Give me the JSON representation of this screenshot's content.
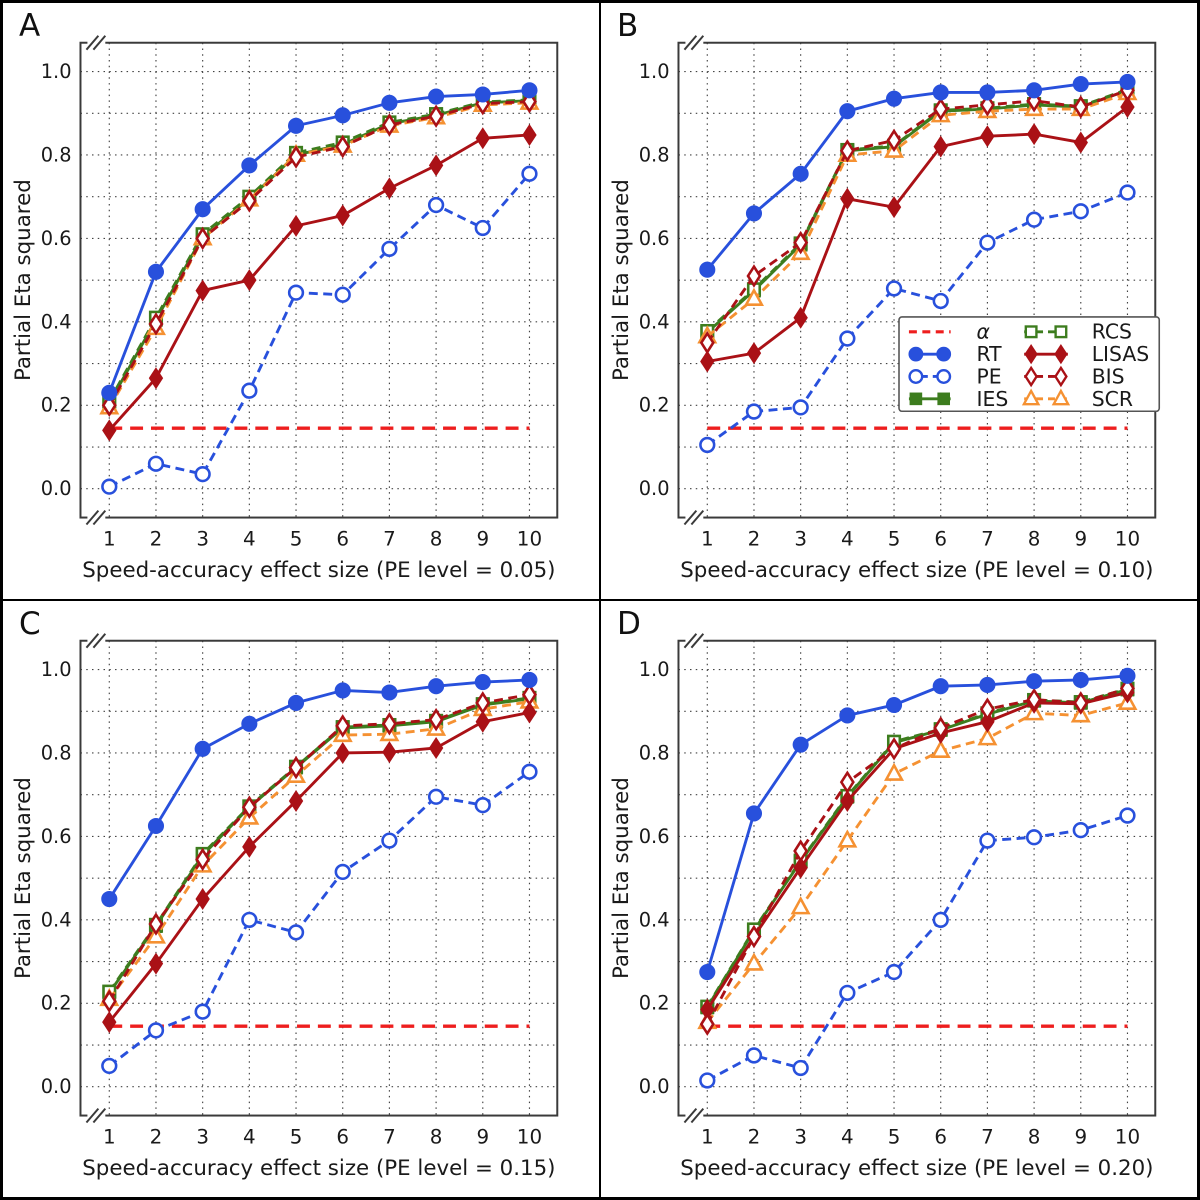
{
  "figure_title": "Partial Eta squared vs Speed-accuracy effect size, panels A-D",
  "chart_data": {
    "type": "line",
    "x": [
      1,
      2,
      3,
      4,
      5,
      6,
      7,
      8,
      9,
      10
    ],
    "ylim": [
      -0.069,
      1.069
    ],
    "yticks": [
      0.0,
      0.2,
      0.4,
      0.6,
      0.8,
      1.0
    ],
    "ytick_labels": [
      "0.0",
      "0.2",
      "0.4",
      "0.6",
      "0.8",
      "1.0"
    ],
    "xtick_labels": [
      "1",
      "2",
      "3",
      "4",
      "5",
      "6",
      "7",
      "8",
      "9",
      "10"
    ],
    "ylabel": "Partial Eta squared",
    "grid": "dotted, every 0.1 on y and every 1 on x",
    "axis_break_marks": "double slash at top-left and bottom-left of each plot box",
    "series_defs": [
      {
        "key": "alpha",
        "label": "α",
        "color": "#ee1e1e",
        "line": "dashed",
        "marker": "none"
      },
      {
        "key": "RT",
        "label": "RT",
        "color": "#2850dc",
        "line": "solid",
        "marker": "circle-filled"
      },
      {
        "key": "PE",
        "label": "PE",
        "color": "#2850dc",
        "line": "dashed",
        "marker": "circle-open"
      },
      {
        "key": "IES",
        "label": "IES",
        "color": "#3d7d1e",
        "line": "solid",
        "marker": "square-filled"
      },
      {
        "key": "RCS",
        "label": "RCS",
        "color": "#3d7d1e",
        "line": "dashed",
        "marker": "square-open"
      },
      {
        "key": "LISAS",
        "label": "LISAS",
        "color": "#aa1116",
        "line": "solid",
        "marker": "diamond-filled"
      },
      {
        "key": "BIS",
        "label": "BIS",
        "color": "#aa1116",
        "line": "dashed",
        "marker": "diamond-open"
      },
      {
        "key": "SCR",
        "label": "SCR",
        "color": "#f59132",
        "line": "dashed",
        "marker": "triangle-open"
      }
    ],
    "draw_order": [
      "alpha",
      "PE",
      "IES",
      "RCS",
      "SCR",
      "LISAS",
      "BIS",
      "RT"
    ],
    "legend": {
      "host_panel": "B",
      "columns": [
        [
          "alpha",
          "RT",
          "PE",
          "IES"
        ],
        [
          "RCS",
          "LISAS",
          "BIS",
          "SCR"
        ]
      ]
    },
    "panels": [
      {
        "label": "A",
        "xlabel": "Speed-accuracy effect size (PE level = 0.05)",
        "show_legend": false,
        "values": {
          "alpha": 0.145,
          "RT": [
            0.23,
            0.52,
            0.67,
            0.775,
            0.87,
            0.895,
            0.925,
            0.94,
            0.945,
            0.955
          ],
          "PE": [
            0.005,
            0.06,
            0.035,
            0.235,
            0.47,
            0.465,
            0.575,
            0.68,
            0.625,
            0.755
          ],
          "IES": [
            0.205,
            0.405,
            0.605,
            0.695,
            0.8,
            0.825,
            0.875,
            0.895,
            0.925,
            0.93
          ],
          "RCS": [
            0.21,
            0.41,
            0.61,
            0.7,
            0.805,
            0.83,
            0.878,
            0.898,
            0.927,
            0.932
          ],
          "LISAS": [
            0.14,
            0.265,
            0.475,
            0.5,
            0.63,
            0.655,
            0.72,
            0.775,
            0.84,
            0.848
          ],
          "BIS": [
            0.2,
            0.395,
            0.6,
            0.69,
            0.795,
            0.82,
            0.872,
            0.893,
            0.923,
            0.928
          ],
          "SCR": [
            0.195,
            0.385,
            0.6,
            0.693,
            0.8,
            0.822,
            0.87,
            0.89,
            0.92,
            0.925
          ]
        }
      },
      {
        "label": "B",
        "xlabel": "Speed-accuracy effect size (PE level = 0.10)",
        "show_legend": true,
        "values": {
          "alpha": 0.145,
          "RT": [
            0.525,
            0.66,
            0.755,
            0.905,
            0.935,
            0.95,
            0.95,
            0.955,
            0.97,
            0.975
          ],
          "PE": [
            0.105,
            0.185,
            0.195,
            0.36,
            0.48,
            0.45,
            0.59,
            0.645,
            0.665,
            0.71
          ],
          "IES": [
            0.375,
            0.475,
            0.585,
            0.81,
            0.82,
            0.905,
            0.91,
            0.92,
            0.915,
            0.955
          ],
          "RCS": [
            0.378,
            0.478,
            0.588,
            0.812,
            0.822,
            0.907,
            0.912,
            0.922,
            0.917,
            0.957
          ],
          "LISAS": [
            0.305,
            0.325,
            0.41,
            0.695,
            0.675,
            0.82,
            0.845,
            0.85,
            0.83,
            0.915
          ],
          "BIS": [
            0.35,
            0.51,
            0.59,
            0.81,
            0.835,
            0.91,
            0.92,
            0.93,
            0.915,
            0.955
          ],
          "SCR": [
            0.365,
            0.455,
            0.565,
            0.8,
            0.81,
            0.895,
            0.905,
            0.91,
            0.91,
            0.948
          ]
        }
      },
      {
        "label": "C",
        "xlabel": "Speed-accuracy effect size (PE level = 0.15)",
        "show_legend": false,
        "values": {
          "alpha": 0.145,
          "RT": [
            0.45,
            0.625,
            0.81,
            0.87,
            0.92,
            0.95,
            0.945,
            0.96,
            0.97,
            0.975
          ],
          "PE": [
            0.05,
            0.135,
            0.18,
            0.4,
            0.37,
            0.515,
            0.59,
            0.695,
            0.675,
            0.755
          ],
          "IES": [
            0.225,
            0.385,
            0.555,
            0.67,
            0.765,
            0.86,
            0.865,
            0.875,
            0.915,
            0.93
          ],
          "RCS": [
            0.228,
            0.388,
            0.558,
            0.672,
            0.767,
            0.862,
            0.867,
            0.877,
            0.917,
            0.932
          ],
          "LISAS": [
            0.155,
            0.295,
            0.45,
            0.575,
            0.685,
            0.8,
            0.802,
            0.812,
            0.875,
            0.897
          ],
          "BIS": [
            0.205,
            0.39,
            0.545,
            0.67,
            0.765,
            0.865,
            0.87,
            0.88,
            0.92,
            0.94
          ],
          "SCR": [
            0.21,
            0.36,
            0.53,
            0.645,
            0.745,
            0.843,
            0.845,
            0.858,
            0.905,
            0.923
          ]
        }
      },
      {
        "label": "D",
        "xlabel": "Speed-accuracy effect size (PE level = 0.20)",
        "show_legend": false,
        "values": {
          "alpha": 0.145,
          "RT": [
            0.275,
            0.655,
            0.82,
            0.89,
            0.915,
            0.96,
            0.963,
            0.972,
            0.975,
            0.985
          ],
          "PE": [
            0.015,
            0.075,
            0.045,
            0.225,
            0.275,
            0.4,
            0.59,
            0.598,
            0.615,
            0.65
          ],
          "IES": [
            0.19,
            0.375,
            0.54,
            0.695,
            0.825,
            0.855,
            0.893,
            0.925,
            0.92,
            0.952
          ],
          "RCS": [
            0.192,
            0.377,
            0.542,
            0.697,
            0.827,
            0.857,
            0.895,
            0.927,
            0.922,
            0.954
          ],
          "LISAS": [
            0.185,
            0.36,
            0.525,
            0.685,
            0.81,
            0.848,
            0.875,
            0.92,
            0.918,
            0.945
          ],
          "BIS": [
            0.15,
            0.36,
            0.565,
            0.73,
            0.81,
            0.86,
            0.905,
            0.928,
            0.92,
            0.955
          ],
          "SCR": [
            0.155,
            0.295,
            0.43,
            0.59,
            0.75,
            0.805,
            0.835,
            0.895,
            0.89,
            0.92
          ]
        }
      }
    ]
  }
}
